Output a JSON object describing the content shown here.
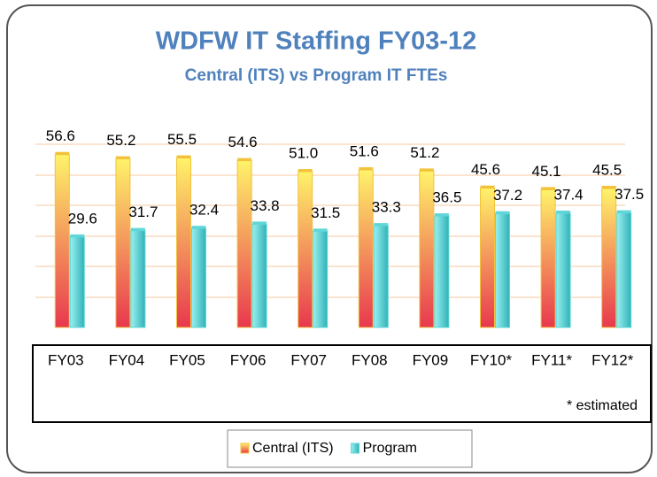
{
  "chart_data": {
    "type": "bar",
    "title": "WDFW IT Staffing FY03-12",
    "subtitle": "Central (ITS) vs Program IT FTEs",
    "categories": [
      "FY03",
      "FY04",
      "FY05",
      "FY06",
      "FY07",
      "FY08",
      "FY09",
      "FY10*",
      "FY11*",
      "FY12*"
    ],
    "series": [
      {
        "name": "Central (ITS)",
        "color": "#f2c23a",
        "values": [
          56.6,
          55.2,
          55.5,
          54.6,
          51.0,
          51.6,
          51.2,
          45.6,
          45.1,
          45.5
        ],
        "value_labels": [
          "56.6",
          "55.2",
          "55.5",
          "54.6",
          "51.0",
          "51.6",
          "51.2",
          "45.6",
          "45.1",
          "45.5"
        ]
      },
      {
        "name": "Program",
        "color": "#5fd6d8",
        "values": [
          29.6,
          31.7,
          32.4,
          33.8,
          31.5,
          33.3,
          36.5,
          37.2,
          37.4,
          37.5
        ],
        "value_labels": [
          "29.6",
          "31.7",
          "32.4",
          "33.8",
          "31.5",
          "33.3",
          "36.5",
          "37.2",
          "37.4",
          "37.5"
        ]
      }
    ],
    "ylim": [
      0,
      60
    ],
    "annotation": "* estimated",
    "legend": "bottom"
  }
}
